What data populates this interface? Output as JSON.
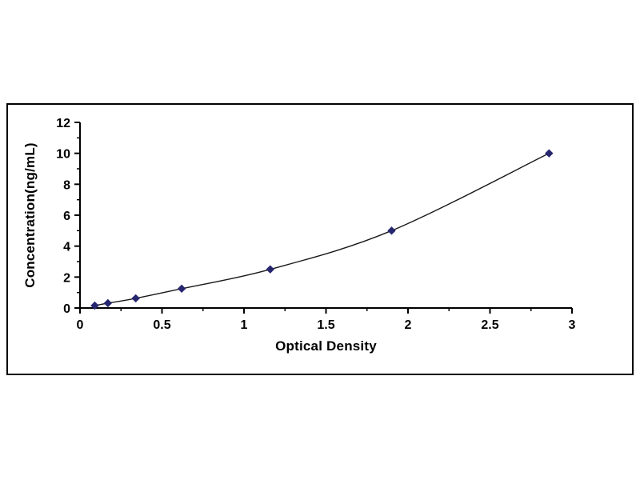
{
  "page": {
    "background_color": "#ffffff"
  },
  "chart_data": {
    "type": "line",
    "title": "",
    "xlabel": "Optical Density",
    "ylabel": "Concentration(ng/mL)",
    "x": [
      0.09,
      0.17,
      0.34,
      0.62,
      1.16,
      1.9,
      2.86
    ],
    "y": [
      0.156,
      0.312,
      0.625,
      1.25,
      2.5,
      5,
      10
    ],
    "xlim": [
      0,
      3
    ],
    "ylim": [
      0,
      12
    ],
    "xticks": [
      0,
      0.5,
      1,
      1.5,
      2,
      2.5,
      3
    ],
    "xtick_labels": [
      "0",
      "0.5",
      "1",
      "1.5",
      "2",
      "2.5",
      "3"
    ],
    "yticks": [
      0,
      2,
      4,
      6,
      8,
      10,
      12
    ],
    "ytick_labels": [
      "0",
      "2",
      "4",
      "6",
      "8",
      "10",
      "12"
    ],
    "grid": false,
    "legend_position": "none",
    "marker_shape": "diamond",
    "marker_color": "#26266e",
    "line_color": "#1a1a1a",
    "axis_color": "#000000",
    "frame_border_color": "#000000"
  }
}
